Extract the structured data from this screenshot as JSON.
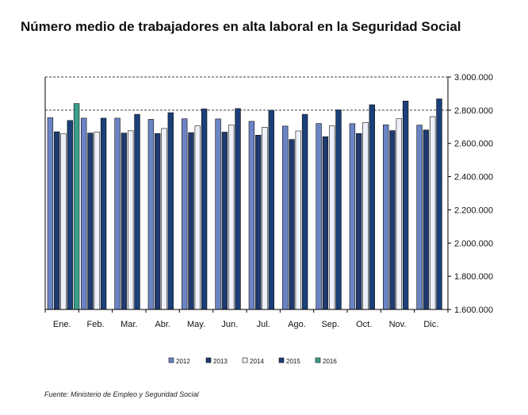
{
  "title": "Número medio de trabajadores en alta laboral en la Seguridad Social",
  "source": "Fuente: Ministerio de Empleo y Seguridad Social",
  "chart_data": {
    "type": "bar",
    "title": "Número medio de trabajadores en alta laboral en la Seguridad Social",
    "xlabel": "",
    "ylabel": "",
    "categories": [
      "Ene.",
      "Feb.",
      "Mar.",
      "Abr.",
      "May.",
      "Jun.",
      "Jul.",
      "Ago.",
      "Sep.",
      "Oct.",
      "Nov.",
      "Dic."
    ],
    "y_ticks": [
      "1.600.000",
      "1.800.000",
      "2.000.000",
      "2.200.000",
      "2.400.000",
      "2.600.000",
      "2.800.000",
      "3.000.000"
    ],
    "y_tick_values": [
      1600000,
      1800000,
      2000000,
      2200000,
      2400000,
      2600000,
      2800000,
      3000000
    ],
    "ylim": [
      1600000,
      3000000
    ],
    "y_axis_side": "right",
    "grid": "dashed at 2.800.000 and 3.000.000",
    "legend_position": "bottom",
    "series": [
      {
        "name": "2012",
        "color": "#6b84c4",
        "values": [
          2755000,
          2752000,
          2752000,
          2745000,
          2748000,
          2747000,
          2733000,
          2704000,
          2720000,
          2719000,
          2712000,
          2710000
        ]
      },
      {
        "name": "2013",
        "color": "#203a6e",
        "values": [
          2670000,
          2662000,
          2662000,
          2660000,
          2665000,
          2668000,
          2650000,
          2624000,
          2640000,
          2660000,
          2677000,
          2681000
        ]
      },
      {
        "name": "2014",
        "color": "#eef1fa",
        "values": [
          2658000,
          2668000,
          2676000,
          2690000,
          2705000,
          2710000,
          2697000,
          2675000,
          2705000,
          2726000,
          2748000,
          2761000
        ]
      },
      {
        "name": "2015",
        "color": "#1b3f78",
        "values": [
          2738000,
          2752000,
          2775000,
          2785000,
          2808000,
          2810000,
          2800000,
          2775000,
          2802000,
          2833000,
          2855000,
          2868000
        ]
      },
      {
        "name": "2016",
        "color": "#3aa08a",
        "values": [
          2840000,
          null,
          null,
          null,
          null,
          null,
          null,
          null,
          null,
          null,
          null,
          null
        ]
      }
    ]
  }
}
